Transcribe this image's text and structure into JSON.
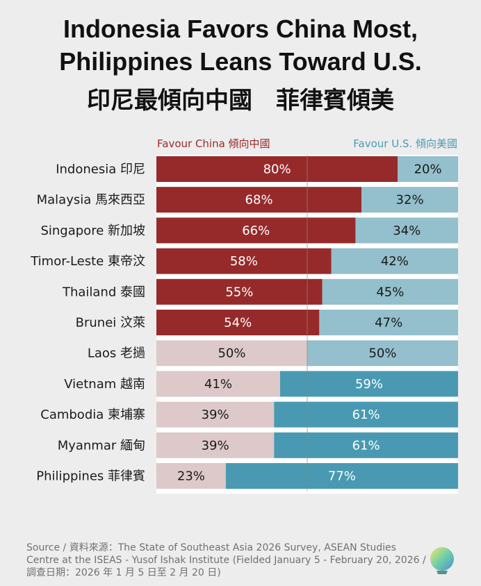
{
  "title_line1": "Indonesia Favors China Most,",
  "title_line2": "Philippines Leans Toward U.S.",
  "title_line3": "印尼最傾向中國　菲律賓傾美",
  "source": "Source / 資料來源：The State of Southeast Asia 2026 Survey, ASEAN Studies Centre at the ISEAS - Yusof Ishak Institute (Fielded January 5 -  February 20, 2026 / 調查日期：2026 年 1 月 5 日至 2 月 20 日)",
  "colors": {
    "china_strong": "#962a2b",
    "china_light": "#ddc9c9",
    "us_light": "#94bfcc",
    "us_strong": "#4a99b2"
  },
  "chart_data": {
    "type": "bar",
    "orientation": "horizontal-stacked-100",
    "categories": [
      "Indonesia 印尼",
      "Malaysia 馬來西亞",
      "Singapore 新加坡",
      "Timor-Leste 東帝汶",
      "Thailand 泰國",
      "Brunei 汶萊",
      "Laos 老撾",
      "Vietnam 越南",
      "Cambodia 柬埔寨",
      "Myanmar 緬甸",
      "Philippines 菲律賓"
    ],
    "series": [
      {
        "name": "Favour China 傾向中國",
        "values": [
          80,
          68,
          66,
          58,
          55,
          54,
          50,
          41,
          39,
          39,
          23
        ]
      },
      {
        "name": "Favour U.S. 傾向美國",
        "values": [
          20,
          32,
          34,
          42,
          45,
          47,
          50,
          59,
          61,
          61,
          77
        ]
      }
    ],
    "labels_china": [
      "80%",
      "68%",
      "66%",
      "58%",
      "55%",
      "54%",
      "50%",
      "41%",
      "39%",
      "39%",
      "23%"
    ],
    "labels_us": [
      "20%",
      "32%",
      "34%",
      "42%",
      "45%",
      "47%",
      "50%",
      "59%",
      "61%",
      "61%",
      "77%"
    ],
    "xlim": [
      0,
      100
    ],
    "legend_position": "top"
  }
}
